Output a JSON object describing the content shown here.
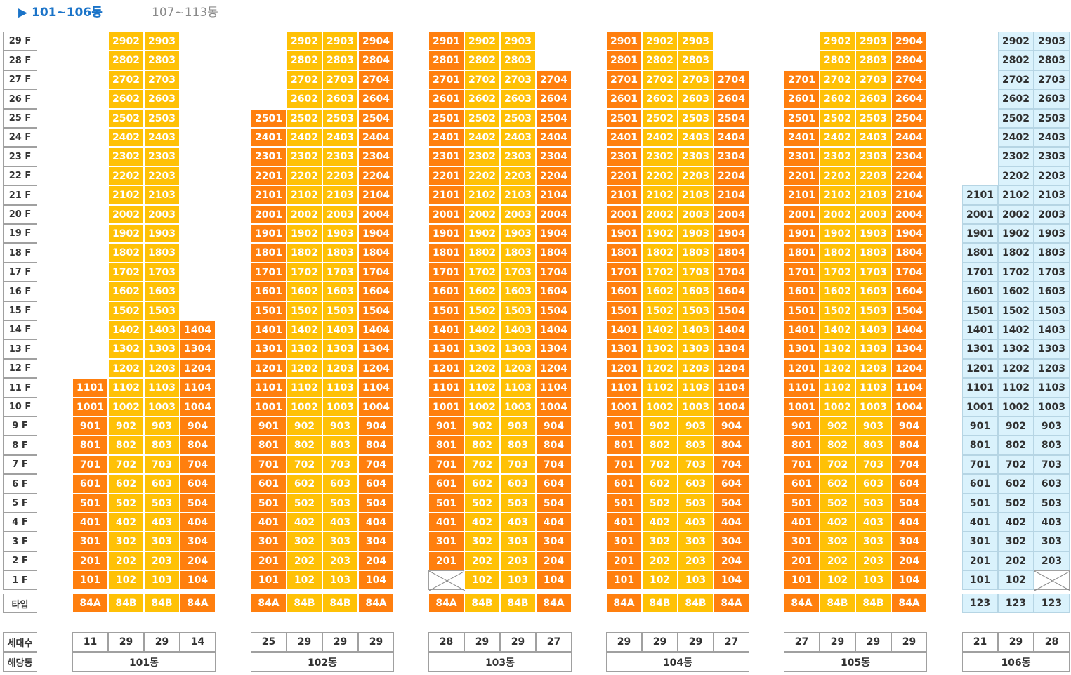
{
  "tabs": [
    {
      "label": "▶ 101~106동",
      "active": true
    },
    {
      "label": "107~113동",
      "active": false
    }
  ],
  "type_row_label": "타입",
  "households_label": "세대수",
  "building_label": "해당동",
  "floors": [
    "29F",
    "28F",
    "27F",
    "26F",
    "25F",
    "24F",
    "23F",
    "22F",
    "21F",
    "20F",
    "19F",
    "18F",
    "17F",
    "16F",
    "15F",
    "14F",
    "13F",
    "12F",
    "11F",
    "10F",
    "9F",
    "8F",
    "7F",
    "6F",
    "5F",
    "4F",
    "3F",
    "2F",
    "1F"
  ],
  "floor_labels": [
    "29 F",
    "28 F",
    "27 F",
    "26 F",
    "25 F",
    "24 F",
    "23 F",
    "22 F",
    "21 F",
    "20 F",
    "19 F",
    "18 F",
    "17 F",
    "16 F",
    "15 F",
    "14 F",
    "13 F",
    "12 F",
    "11 F",
    "10 F",
    "9 F",
    "8 F",
    "7 F",
    "6 F",
    "5 F",
    "4 F",
    "3 F",
    "2 F",
    "1 F"
  ],
  "colors": {
    "type_84A": "#ff7f0e",
    "type_84B": "#ffc106",
    "type_123": "#daf2fc"
  },
  "buildings": [
    {
      "name": "101동",
      "lines": [
        {
          "type": "84A",
          "top": 11,
          "bottom": 1,
          "households": "11"
        },
        {
          "type": "84B",
          "top": 29,
          "bottom": 1,
          "households": "29"
        },
        {
          "type": "84B",
          "top": 29,
          "bottom": 1,
          "households": "29"
        },
        {
          "type": "84A",
          "top": 14,
          "bottom": 1,
          "households": "14"
        }
      ]
    },
    {
      "name": "102동",
      "lines": [
        {
          "type": "84A",
          "top": 25,
          "bottom": 1,
          "households": "25"
        },
        {
          "type": "84B",
          "top": 29,
          "bottom": 1,
          "households": "29"
        },
        {
          "type": "84B",
          "top": 29,
          "bottom": 1,
          "households": "29"
        },
        {
          "type": "84A",
          "top": 29,
          "bottom": 1,
          "households": "29"
        }
      ]
    },
    {
      "name": "103동",
      "lines": [
        {
          "type": "84A",
          "top": 29,
          "bottom": 2,
          "households": "28"
        },
        {
          "type": "84B",
          "top": 29,
          "bottom": 1,
          "households": "29"
        },
        {
          "type": "84B",
          "top": 29,
          "bottom": 1,
          "households": "29"
        },
        {
          "type": "84A",
          "top": 27,
          "bottom": 1,
          "households": "27"
        }
      ]
    },
    {
      "name": "104동",
      "lines": [
        {
          "type": "84A",
          "top": 29,
          "bottom": 1,
          "households": "29"
        },
        {
          "type": "84B",
          "top": 29,
          "bottom": 1,
          "households": "29"
        },
        {
          "type": "84B",
          "top": 29,
          "bottom": 1,
          "households": "29"
        },
        {
          "type": "84A",
          "top": 27,
          "bottom": 1,
          "households": "27"
        }
      ]
    },
    {
      "name": "105동",
      "lines": [
        {
          "type": "84A",
          "top": 27,
          "bottom": 1,
          "households": "27"
        },
        {
          "type": "84B",
          "top": 29,
          "bottom": 1,
          "households": "29"
        },
        {
          "type": "84B",
          "top": 29,
          "bottom": 1,
          "households": "29"
        },
        {
          "type": "84A",
          "top": 29,
          "bottom": 1,
          "households": "29"
        }
      ]
    },
    {
      "name": "106동",
      "lines": [
        {
          "type": "123",
          "top": 21,
          "bottom": 1,
          "households": "21"
        },
        {
          "type": "123",
          "top": 29,
          "bottom": 1,
          "households": "29"
        },
        {
          "type": "123",
          "top": 29,
          "bottom": 2,
          "households": "28"
        }
      ]
    }
  ]
}
